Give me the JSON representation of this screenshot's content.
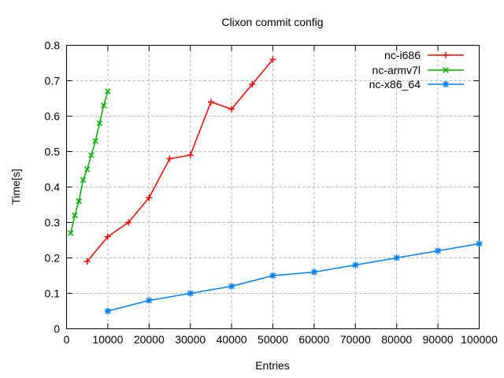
{
  "chart_data": {
    "type": "line",
    "title": "Clixon commit config",
    "xlabel": "Entries",
    "ylabel": "Time[s]",
    "xlim": [
      0,
      100000
    ],
    "ylim": [
      0,
      0.8
    ],
    "grid": true,
    "legend_position": "top-right-inside",
    "background_color": "#ffffff",
    "axis_color": "#000000",
    "xtick_values": [
      0,
      10000,
      20000,
      30000,
      40000,
      50000,
      60000,
      70000,
      80000,
      90000,
      100000
    ],
    "xtick_labels": [
      "0",
      "10000",
      "20000",
      "30000",
      "40000",
      "50000",
      "60000",
      "70000",
      "80000",
      "90000",
      "100000"
    ],
    "ytick_values": [
      0,
      0.1,
      0.2,
      0.3,
      0.4,
      0.5,
      0.6,
      0.7,
      0.8
    ],
    "ytick_labels": [
      "0",
      "0.1",
      "0.2",
      "0.3",
      "0.4",
      "0.5",
      "0.6",
      "0.7",
      "0.8"
    ],
    "series": [
      {
        "name": "nc-i686",
        "color": "#ff0000",
        "marker": "plus",
        "x": [
          5000,
          10000,
          15000,
          20000,
          25000,
          30000,
          35000,
          40000,
          45000,
          50000
        ],
        "y": [
          0.19,
          0.26,
          0.3,
          0.37,
          0.48,
          0.49,
          0.64,
          0.62,
          0.69,
          0.76
        ]
      },
      {
        "name": "nc-armv7l",
        "color": "#00b000",
        "marker": "x",
        "x": [
          1000,
          2000,
          3000,
          4000,
          5000,
          6000,
          7000,
          8000,
          9000,
          10000
        ],
        "y": [
          0.27,
          0.32,
          0.36,
          0.42,
          0.45,
          0.49,
          0.53,
          0.58,
          0.63,
          0.67
        ]
      },
      {
        "name": "nc-x86_64",
        "color": "#0080ff",
        "marker": "asterisk",
        "x": [
          10000,
          20000,
          30000,
          40000,
          50000,
          60000,
          70000,
          80000,
          90000,
          100000
        ],
        "y": [
          0.05,
          0.08,
          0.1,
          0.12,
          0.15,
          0.16,
          0.18,
          0.2,
          0.22,
          0.24
        ]
      }
    ]
  }
}
